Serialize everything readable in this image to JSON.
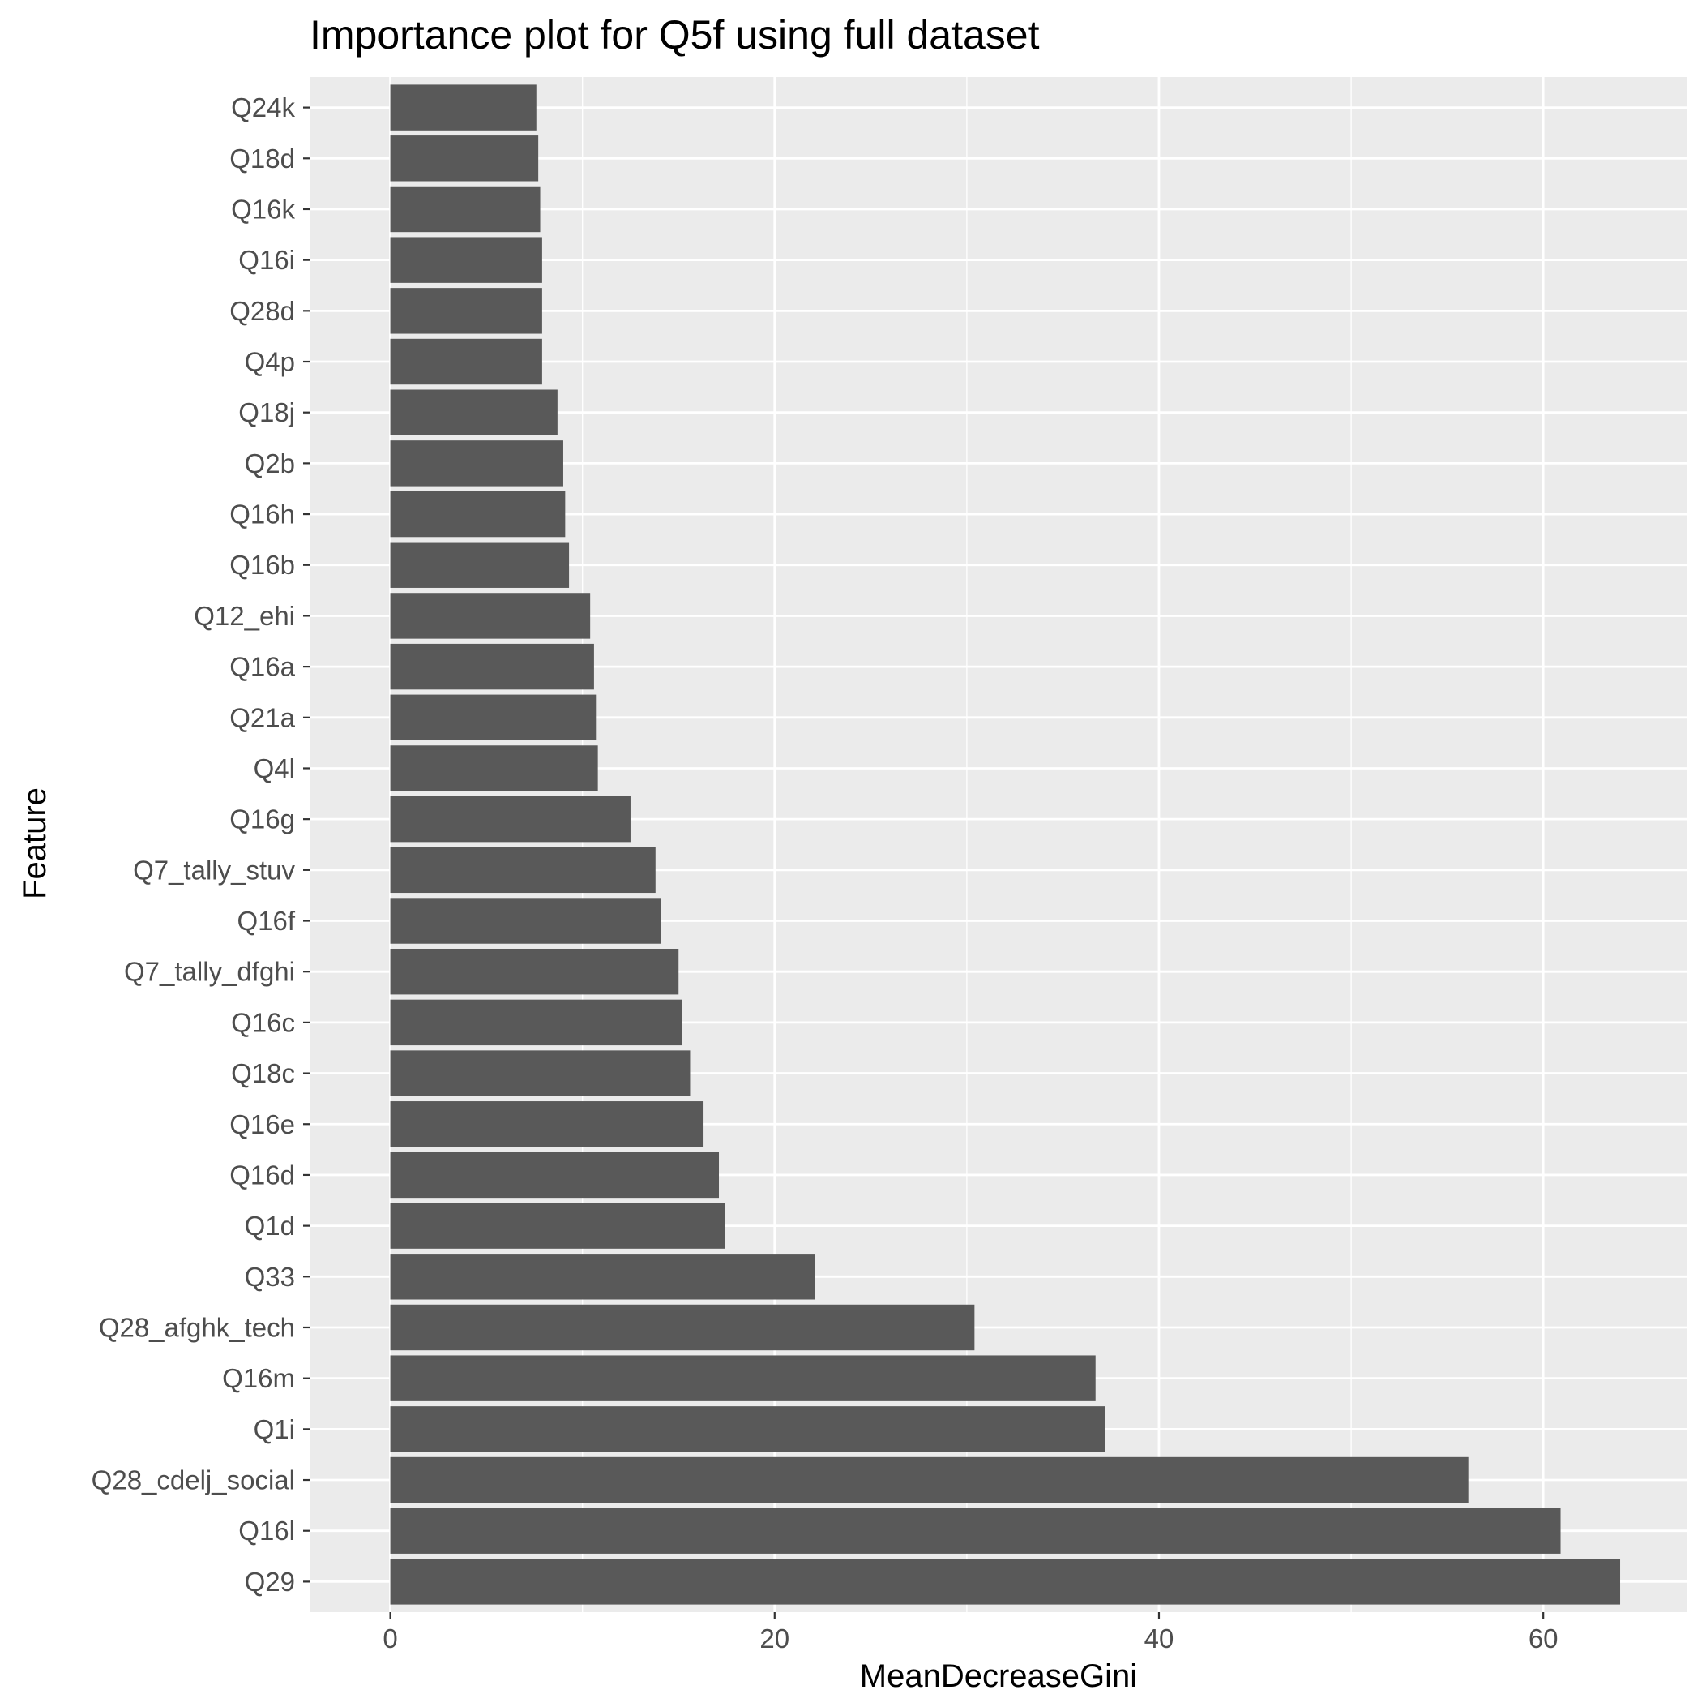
{
  "chart_data": {
    "type": "bar",
    "orientation": "horizontal",
    "title": "Importance plot for Q5f using full dataset",
    "xlabel": "MeanDecreaseGini",
    "ylabel": "Feature",
    "xlim": [
      -4.2,
      67.5
    ],
    "xticks": [
      0,
      20,
      40,
      60
    ],
    "grid": true,
    "legend": "none",
    "bar_color": "#595959",
    "panel_color": "#ebebeb",
    "grid_color": "#ffffff",
    "categories": [
      "Q24k",
      "Q18d",
      "Q16k",
      "Q16i",
      "Q28d",
      "Q4p",
      "Q18j",
      "Q2b",
      "Q16h",
      "Q16b",
      "Q12_ehi",
      "Q16a",
      "Q21a",
      "Q4l",
      "Q16g",
      "Q7_tally_stuv",
      "Q16f",
      "Q7_tally_dfghi",
      "Q16c",
      "Q18c",
      "Q16e",
      "Q16d",
      "Q1d",
      "Q33",
      "Q28_afghk_tech",
      "Q16m",
      "Q1i",
      "Q28_cdelj_social",
      "Q16l",
      "Q29"
    ],
    "values": [
      7.6,
      7.7,
      7.8,
      7.9,
      7.9,
      7.9,
      8.7,
      9.0,
      9.1,
      9.3,
      10.4,
      10.6,
      10.7,
      10.8,
      12.5,
      13.8,
      14.1,
      15.0,
      15.2,
      15.6,
      16.3,
      17.1,
      17.4,
      22.1,
      30.4,
      36.7,
      37.2,
      56.1,
      60.9,
      64.0
    ]
  }
}
